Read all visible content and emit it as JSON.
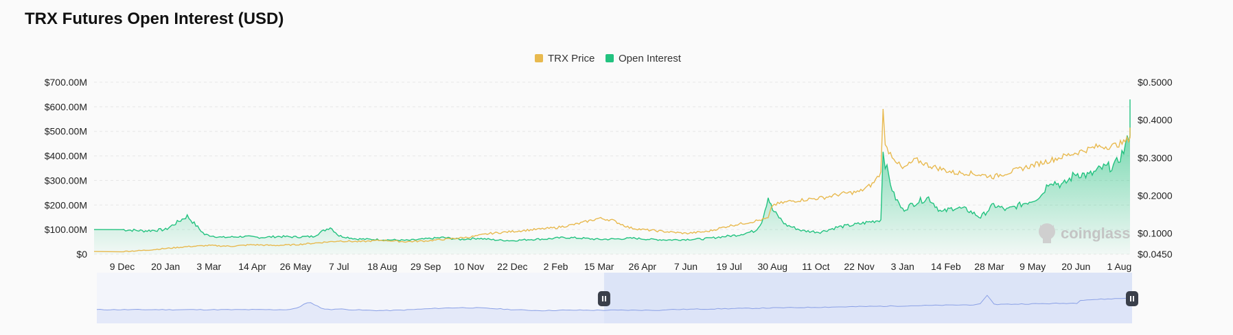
{
  "title": "TRX Futures Open Interest (USD)",
  "watermark": "coinglass",
  "colors": {
    "price": "#e8b94e",
    "oi": "#22c27f",
    "oi_fill_top": "#22c27f",
    "grid": "#e6e6e6",
    "navigator_line": "#8aa0e6",
    "navigator_fill": "#dde4f8",
    "navigator_selected": "#cdd8f5",
    "handle": "#3a3f4a"
  },
  "chart_data": {
    "type": "line",
    "legend": [
      "TRX Price",
      "Open Interest"
    ],
    "legend_position": "top-center",
    "y_left": {
      "ticks": [
        "$0",
        "$100.00M",
        "$200.00M",
        "$300.00M",
        "$400.00M",
        "$500.00M",
        "$600.00M",
        "$700.00M"
      ],
      "range": [
        0,
        700
      ]
    },
    "y_right": {
      "ticks": [
        "$0.0450",
        "$0.1000",
        "$0.2000",
        "$0.3000",
        "$0.4000",
        "$0.5000"
      ],
      "range": [
        0.045,
        0.5
      ]
    },
    "x_ticks": [
      "9 Dec",
      "20 Jan",
      "3 Mar",
      "14 Apr",
      "26 May",
      "7 Jul",
      "18 Aug",
      "29 Sep",
      "10 Nov",
      "22 Dec",
      "2 Feb",
      "15 Mar",
      "26 Apr",
      "7 Jun",
      "19 Jul",
      "30 Aug",
      "11 Oct",
      "22 Nov",
      "3 Jan",
      "14 Feb",
      "28 Mar",
      "9 May",
      "20 Jun",
      "1 Aug"
    ],
    "grid": true,
    "series": [
      {
        "name": "Open Interest",
        "axis": "left",
        "unit": "M USD",
        "x": [
          0,
          0.5,
          1,
          1.5,
          1.9,
          2.3,
          2.8,
          3.2,
          3.6,
          4.0,
          4.4,
          4.8,
          5.0,
          5.4,
          5.8,
          6.2,
          6.6,
          7.0,
          7.4,
          7.8,
          8.2,
          8.6,
          9.0,
          9.4,
          9.8,
          10.2,
          10.6,
          11.0,
          11.4,
          11.8,
          12.2,
          12.6,
          13.0,
          13.4,
          13.8,
          14.2,
          14.6,
          14.75,
          14.9,
          15.0,
          15.3,
          15.7,
          16.1,
          16.5,
          16.9,
          17.2,
          17.5,
          17.55,
          17.6,
          17.8,
          18.0,
          18.3,
          18.6,
          18.9,
          19.2,
          19.5,
          19.8,
          20.1,
          20.4,
          20.7,
          21.0,
          21.2,
          21.4,
          21.7,
          22.0,
          22.3,
          22.6,
          22.9,
          23.1,
          23.3,
          23.5,
          23.6,
          23.7
        ],
        "y": [
          100,
          95,
          100,
          155,
          80,
          68,
          72,
          68,
          72,
          70,
          72,
          110,
          75,
          62,
          60,
          58,
          56,
          62,
          68,
          60,
          65,
          58,
          55,
          60,
          62,
          68,
          65,
          60,
          62,
          65,
          60,
          58,
          60,
          62,
          70,
          78,
          95,
          130,
          232,
          180,
          120,
          95,
          90,
          110,
          120,
          130,
          140,
          430,
          370,
          240,
          180,
          210,
          230,
          170,
          190,
          180,
          150,
          200,
          180,
          200,
          220,
          240,
          300,
          280,
          330,
          320,
          350,
          360,
          420,
          520,
          600,
          560,
          630
        ]
      },
      {
        "name": "TRX Price",
        "axis": "right",
        "unit": "USD",
        "x": [
          0,
          0.5,
          1,
          1.5,
          2.0,
          2.5,
          3.0,
          3.5,
          4.0,
          4.5,
          5.0,
          5.5,
          6.0,
          6.5,
          7.0,
          7.5,
          8.0,
          8.5,
          9.0,
          9.5,
          10.0,
          10.5,
          11.0,
          11.3,
          11.7,
          12.0,
          12.5,
          13.0,
          13.5,
          14.0,
          14.5,
          14.9,
          15.0,
          15.4,
          15.8,
          16.2,
          16.6,
          17.0,
          17.3,
          17.5,
          17.55,
          17.6,
          17.8,
          18.0,
          18.3,
          18.6,
          18.9,
          19.2,
          19.5,
          19.8,
          20.1,
          20.4,
          20.7,
          21.0,
          21.3,
          21.6,
          21.9,
          22.2,
          22.5,
          22.8,
          23.1,
          23.4,
          23.7
        ],
        "y": [
          0.052,
          0.055,
          0.06,
          0.065,
          0.068,
          0.066,
          0.07,
          0.068,
          0.07,
          0.075,
          0.08,
          0.078,
          0.082,
          0.078,
          0.08,
          0.085,
          0.09,
          0.1,
          0.105,
          0.11,
          0.115,
          0.125,
          0.14,
          0.135,
          0.115,
          0.11,
          0.105,
          0.1,
          0.105,
          0.12,
          0.13,
          0.14,
          0.175,
          0.185,
          0.19,
          0.195,
          0.205,
          0.21,
          0.23,
          0.26,
          0.44,
          0.33,
          0.3,
          0.27,
          0.295,
          0.28,
          0.27,
          0.26,
          0.26,
          0.255,
          0.25,
          0.26,
          0.27,
          0.28,
          0.29,
          0.3,
          0.31,
          0.32,
          0.33,
          0.33,
          0.34,
          0.37,
          0.38
        ]
      }
    ]
  },
  "navigator": {
    "selected_range": [
      0.49,
      1.0
    ],
    "handle_left_icon": "pause-icon",
    "handle_right_icon": "pause-icon"
  }
}
